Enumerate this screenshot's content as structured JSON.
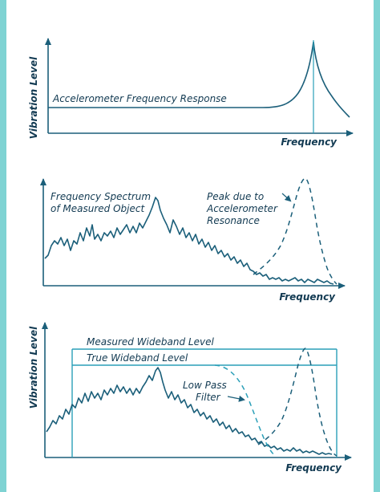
{
  "colors": {
    "stroke": "#1b5f7a",
    "accent": "#2a9fb8",
    "text": "#123a52",
    "border": "#7fd3d3"
  },
  "panel1": {
    "ylabel": "Vibration Level",
    "xlabel": "Frequency",
    "curve_label": "Accelerometer Frequency Response"
  },
  "panel2": {
    "xlabel": "Frequency",
    "spectrum_label_line1": "Frequency Spectrum",
    "spectrum_label_line2": "of Measured Object",
    "peak_label_line1": "Peak due to",
    "peak_label_line2": "Accelerometer",
    "peak_label_line3": "Resonance"
  },
  "panel3": {
    "ylabel": "Vibration Level",
    "xlabel": "Frequency",
    "measured_label": "Measured Wideband Level",
    "true_label": "True Wideband Level",
    "filter_label_line1": "Low Pass",
    "filter_label_line2": "Filter"
  }
}
